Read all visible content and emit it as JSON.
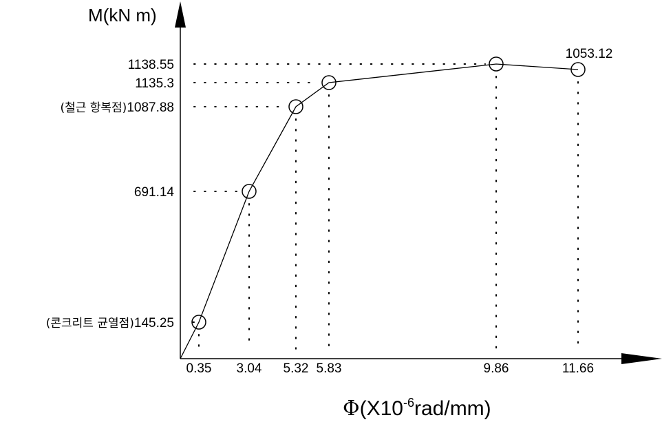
{
  "chart_data": {
    "type": "line",
    "ylabel": "M(kN m)",
    "xlabel_symbol": "Φ",
    "xlabel_prefix": "(X10",
    "xlabel_exp": "-6",
    "xlabel_suffix": "rad/mm)",
    "x_ticks": [
      "0.35",
      "3.04",
      "5.32",
      "5.83",
      "9.86",
      "11.66"
    ],
    "y_ticks": [
      "145.25",
      "691.14",
      "1087.88",
      "1135.3",
      "1138.55"
    ],
    "y_tick_prefix": {
      "145.25": "(콘크리트 균열점)",
      "1087.88": "(철근 항복점)"
    },
    "data_label": "1053.12",
    "series": [
      {
        "points": [
          {
            "x": 0,
            "y": 0
          },
          {
            "x": 0.35,
            "y": 145.25
          },
          {
            "x": 3.04,
            "y": 691.14
          },
          {
            "x": 5.32,
            "y": 1087.88
          },
          {
            "x": 5.83,
            "y": 1135.3
          },
          {
            "x": 9.86,
            "y": 1138.55
          },
          {
            "x": 11.66,
            "y": 1053.12
          }
        ]
      }
    ],
    "grid": "dotted guide lines",
    "legend": "none"
  }
}
